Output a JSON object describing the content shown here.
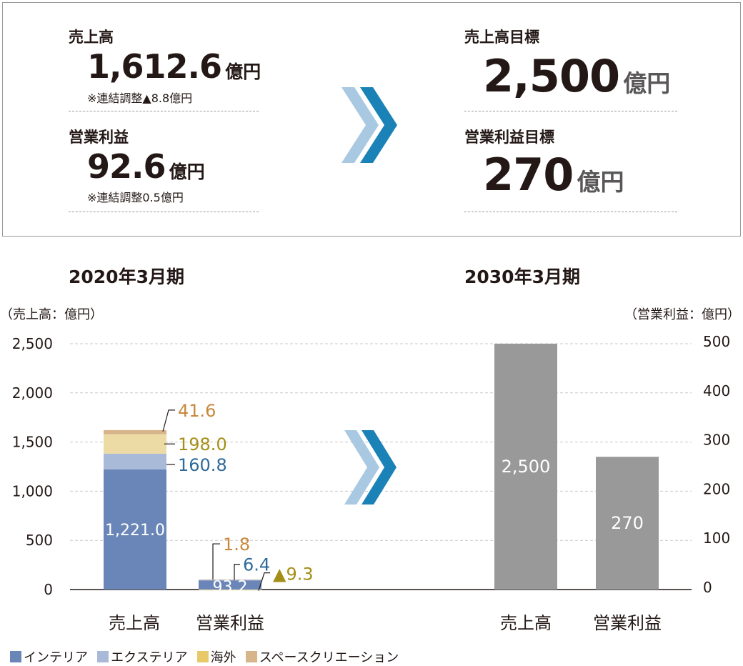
{
  "summary": {
    "current": {
      "sales_label": "売上高",
      "sales_value": "1,612.6",
      "sales_unit": "億円",
      "sales_note": "※連結調整▲8.8億円",
      "op_label": "営業利益",
      "op_value": "92.6",
      "op_unit": "億円",
      "op_note": "※連結調整0.5億円"
    },
    "target": {
      "sales_label": "売上高目標",
      "sales_value": "2,500",
      "sales_unit": "億円",
      "op_label": "営業利益目標",
      "op_value": "270",
      "op_unit": "億円"
    }
  },
  "colors": {
    "interior": "#6a86b8",
    "exterior": "#a9b9d8",
    "overseas": "#ecdba4",
    "space_creation": "#d8b48a",
    "target_bar": "#999999",
    "arrow_light": "#a9c8e2",
    "arrow_dark": "#1b82b8",
    "label_orange": "#c8883c",
    "label_gold": "#a38f16",
    "label_blue": "#2e6a9a"
  },
  "chart_data": [
    {
      "type": "bar",
      "stacked": true,
      "title": "2020年3月期",
      "ylabel": "（売上高：億円）",
      "ylim": [
        0,
        2500
      ],
      "yticks": [
        "2,500",
        "2,000",
        "1,500",
        "1,000",
        "500",
        "0"
      ],
      "categories": [
        "売上高",
        "営業利益"
      ],
      "series": [
        {
          "name": "インテリア",
          "values": [
            1221.0,
            93.2
          ],
          "labels": [
            "1,221.0",
            "93.2"
          ]
        },
        {
          "name": "エクステリア",
          "values": [
            160.8,
            6.4
          ],
          "labels": [
            "160.8",
            "6.4"
          ]
        },
        {
          "name": "海外",
          "values": [
            198.0,
            -9.3
          ],
          "labels": [
            "198.0",
            "▲9.3"
          ]
        },
        {
          "name": "スペースクリエーション",
          "values": [
            41.6,
            1.8
          ],
          "labels": [
            "41.6",
            "1.8"
          ]
        }
      ],
      "grid": true
    },
    {
      "type": "bar",
      "title": "2030年3月期",
      "ylabel": "（営業利益：億円）",
      "categories": [
        "売上高",
        "営業利益"
      ],
      "values": [
        2500,
        270
      ],
      "labels": [
        "2,500",
        "270"
      ],
      "y_left": [
        0,
        2500
      ],
      "y_right": [
        0,
        500
      ],
      "yticks_right": [
        "500",
        "400",
        "300",
        "200",
        "100",
        "0"
      ],
      "grid": true
    }
  ],
  "legend": [
    "インテリア",
    "エクステリア",
    "海外",
    "スペースクリエーション"
  ]
}
